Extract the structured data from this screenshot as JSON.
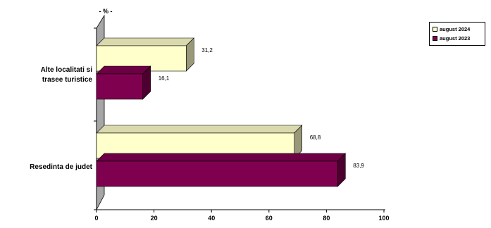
{
  "chart_data": {
    "type": "bar",
    "orientation": "horizontal",
    "three_d": true,
    "unit_label": "- % -",
    "categories": [
      "Alte localitati si trasee turistice",
      "Resedinta de judet"
    ],
    "category_lines": [
      [
        "Alte localitati si",
        "trasee turistice"
      ],
      [
        "Resedinta de judet"
      ]
    ],
    "series": [
      {
        "name": "august 2024",
        "values": [
          31.2,
          68.8
        ],
        "labels": [
          "31,2",
          "68,8"
        ],
        "color": "#ffffcc"
      },
      {
        "name": "august 2023",
        "values": [
          16.1,
          83.9
        ],
        "labels": [
          "16,1",
          "83,9"
        ],
        "color": "#800050"
      }
    ],
    "xlim": [
      0,
      100
    ],
    "xticks": [
      0,
      20,
      40,
      60,
      80,
      100
    ],
    "grid": false,
    "legend_position": "top-right",
    "wall_color": "#a6a6a6"
  }
}
